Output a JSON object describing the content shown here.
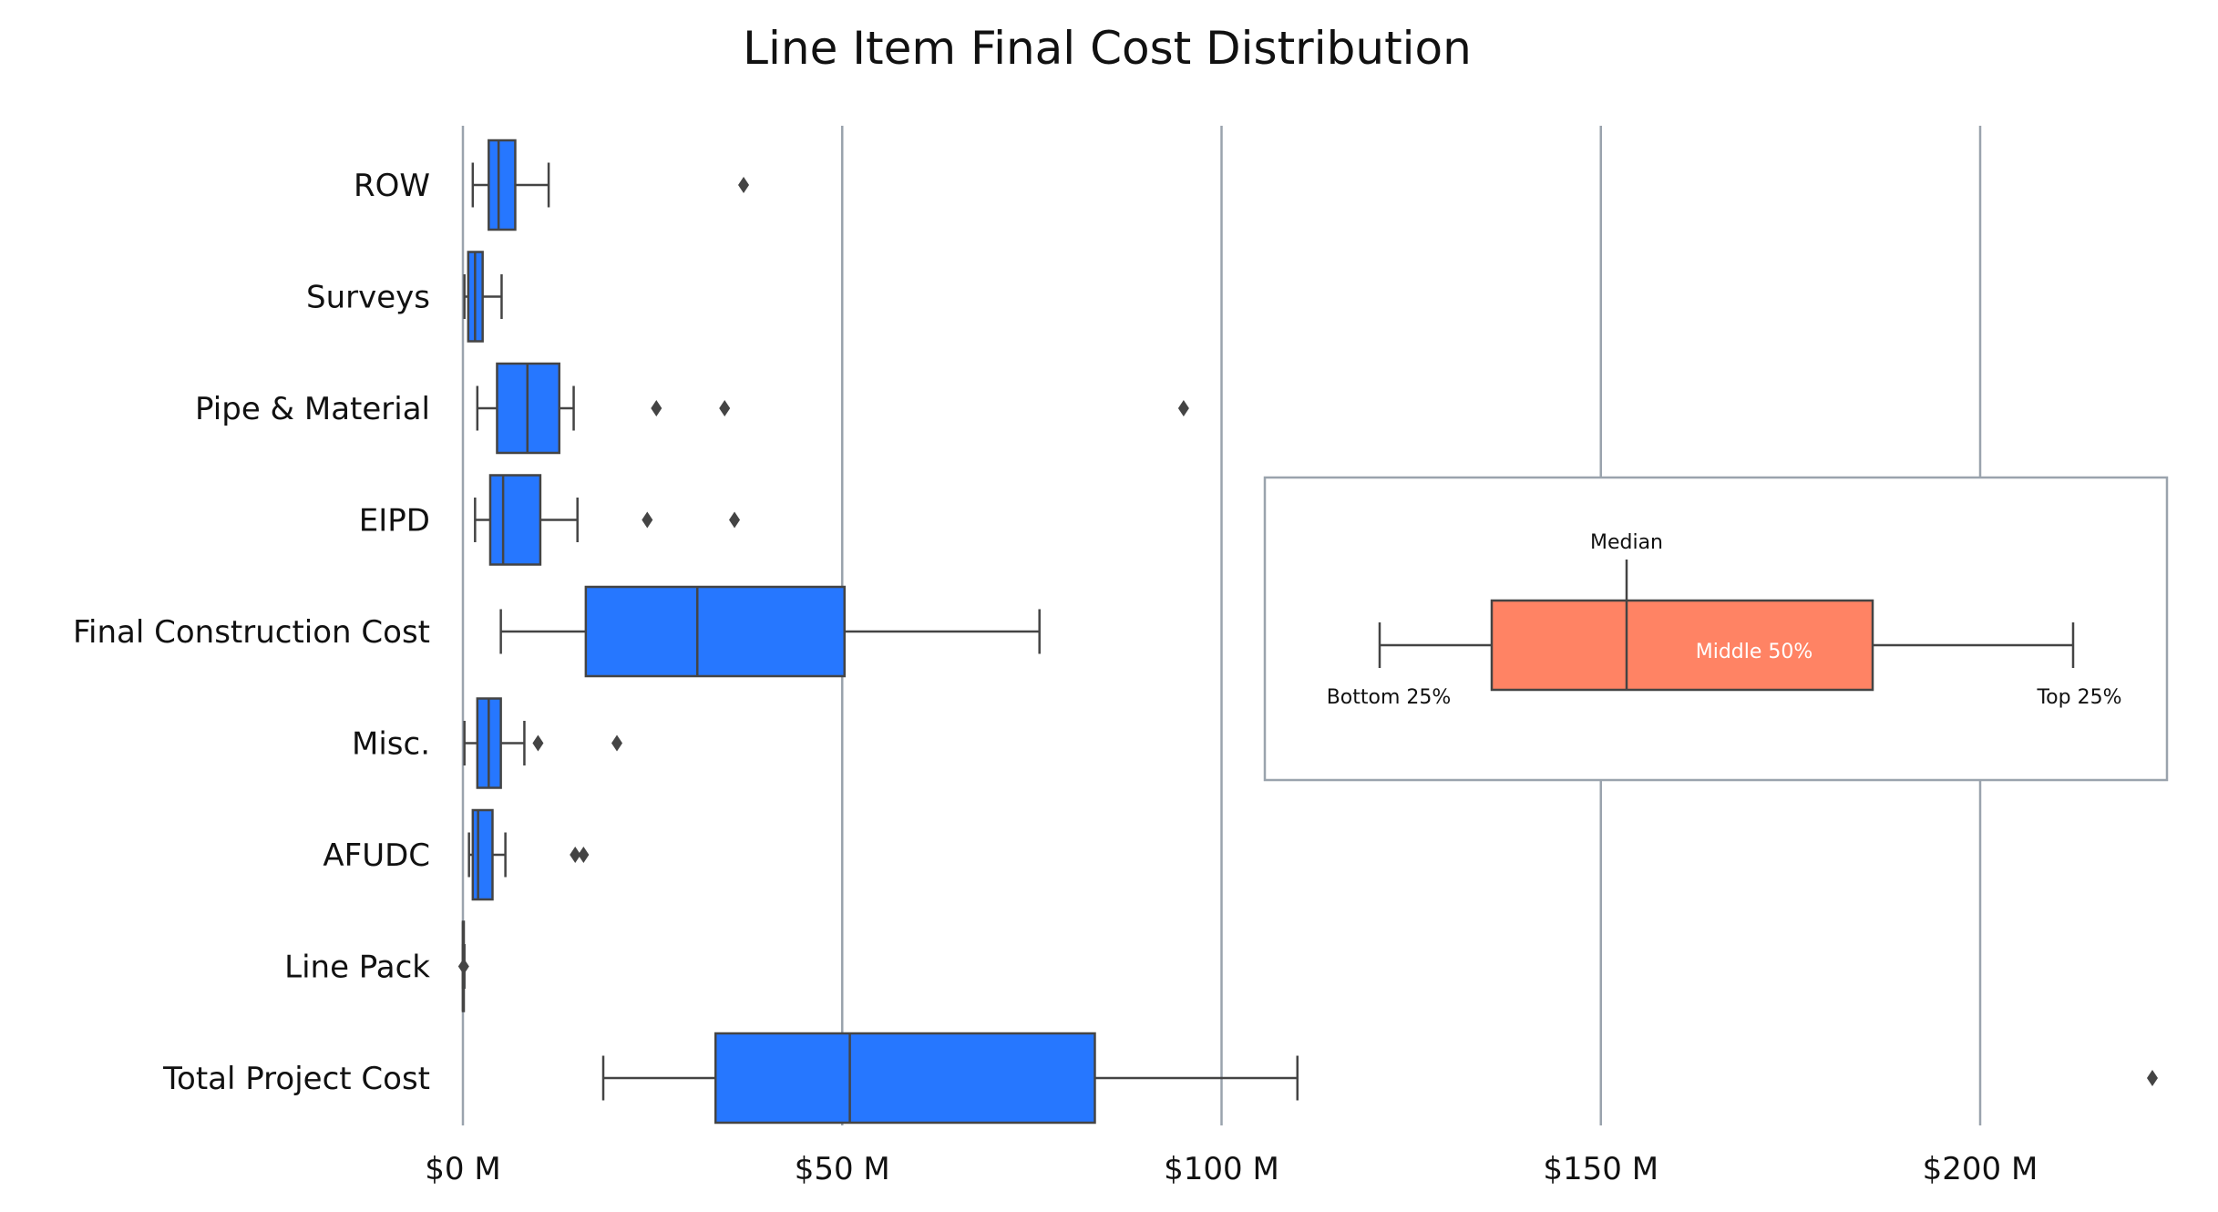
{
  "chart_data": {
    "type": "box",
    "title": "Line Item Final Cost Distribution",
    "orientation": "horizontal",
    "x_ticks": [
      0,
      50,
      100,
      150,
      200
    ],
    "x_tick_labels": [
      "$0 M",
      "$50 M",
      "$100 M",
      "$150 M",
      "$200 M"
    ],
    "xlim": [
      0,
      225
    ],
    "grid": "vertical",
    "box_color": "#2677FF",
    "line_color": "#444444",
    "grid_color": "#9AA3AD",
    "categories": [
      "ROW",
      "Surveys",
      "Pipe & Material",
      "EIPD",
      "Final Construction Cost",
      "Misc.",
      "AFUDC",
      "Line Pack",
      "Total Project Cost"
    ],
    "boxes": [
      {
        "label": "ROW",
        "whisker_low": 1.3,
        "q1": 3.4,
        "median": 4.7,
        "q3": 6.9,
        "whisker_high": 11.3,
        "outliers": [
          37.0
        ]
      },
      {
        "label": "Surveys",
        "whisker_low": 0.2,
        "q1": 0.7,
        "median": 1.6,
        "q3": 2.6,
        "whisker_high": 5.1,
        "outliers": []
      },
      {
        "label": "Pipe & Material",
        "whisker_low": 1.9,
        "q1": 4.5,
        "median": 8.5,
        "q3": 12.7,
        "whisker_high": 14.6,
        "outliers": [
          25.5,
          34.5,
          95.0
        ]
      },
      {
        "label": "EIPD",
        "whisker_low": 1.6,
        "q1": 3.6,
        "median": 5.3,
        "q3": 10.2,
        "whisker_high": 15.1,
        "outliers": [
          24.3,
          35.8
        ]
      },
      {
        "label": "Final Construction Cost",
        "whisker_low": 5.0,
        "q1": 16.2,
        "median": 30.9,
        "q3": 50.3,
        "whisker_high": 76.0,
        "outliers": []
      },
      {
        "label": "Misc.",
        "whisker_low": 0.2,
        "q1": 1.9,
        "median": 3.4,
        "q3": 5.0,
        "whisker_high": 8.1,
        "outliers": [
          9.9,
          20.3
        ]
      },
      {
        "label": "AFUDC",
        "whisker_low": 0.8,
        "q1": 1.3,
        "median": 2.0,
        "q3": 3.9,
        "whisker_high": 5.6,
        "outliers": [
          14.8,
          15.9
        ]
      },
      {
        "label": "Line Pack",
        "whisker_low": 0.0,
        "q1": 0.0,
        "median": 0.0,
        "q3": 0.1,
        "whisker_high": 0.2,
        "outliers": [
          0.1
        ]
      },
      {
        "label": "Total Project Cost",
        "whisker_low": 18.5,
        "q1": 33.3,
        "median": 51.0,
        "q3": 83.3,
        "whisker_high": 110.0,
        "outliers": [
          222.7
        ]
      }
    ],
    "legend": {
      "position": "right",
      "box_color": "#FF8364",
      "median_label": "Median",
      "middle_label": "Middle 50%",
      "bottom_label": "Bottom 25%",
      "top_label": "Top 25%"
    }
  }
}
